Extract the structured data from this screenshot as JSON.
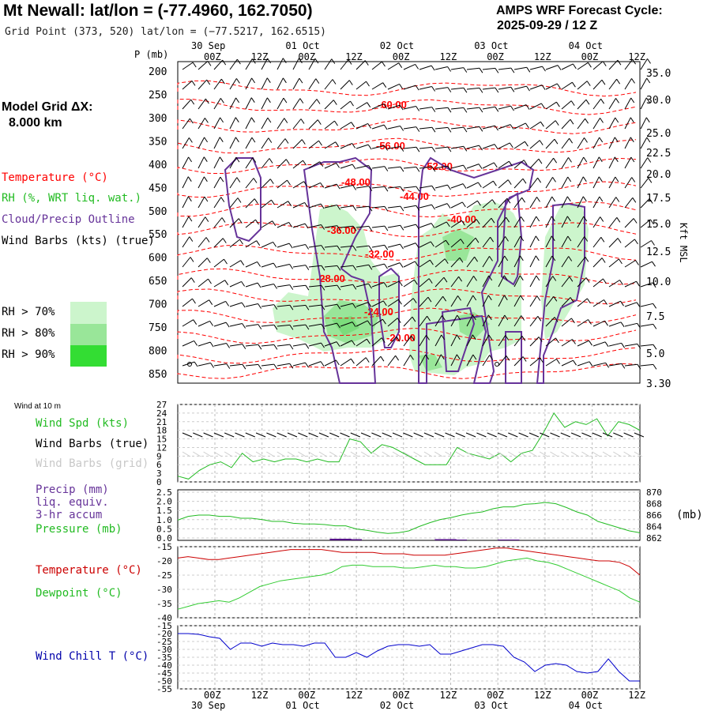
{
  "header": {
    "title": "Mt Newall:  lat/lon = (-77.4960, 162.7050)",
    "subtitle": "Grid Point (373, 520) lat/lon = (−77.5217, 162.6515)",
    "cycle_line1": "AMPS WRF Forecast Cycle:",
    "cycle_line2": "2025-09-29 / 12  Z"
  },
  "time_axis": {
    "ticks": [
      "00Z",
      "12Z",
      "00Z",
      "12Z",
      "00Z",
      "12Z",
      "00Z",
      "12Z",
      "00Z",
      "12Z"
    ],
    "dates": [
      "30 Sep",
      "01 Oct",
      "02 Oct",
      "03 Oct",
      "04 Oct"
    ]
  },
  "left_legend": {
    "grid_title": "Model Grid ΔX:",
    "grid_value": "8.000 km",
    "temperature": "Temperature (°C)",
    "rh": "RH (%, WRT liq. wat.)",
    "cloud": "Cloud/Precip Outline",
    "wind": "Wind Barbs (kts) (true)",
    "rh70": "RH > 70%",
    "rh80": "RH > 80%",
    "rh90": "RH > 90%",
    "p_label": "P (mb)",
    "kft_label": "Kft MSL",
    "wind10_label": "Wind at 10 m",
    "wind_spd": "Wind Spd (kts)",
    "barbs_true": "Wind Barbs (true)",
    "barbs_grid": "Wind Barbs (grid)",
    "precip": "Precip (mm)",
    "precip2": "liq. equiv.",
    "precip3": "3-hr accum",
    "pressure": "Pressure (mb)",
    "mb_unit": "(mb)",
    "temp2": "Temperature (°C)",
    "dewpoint": "Dewpoint (°C)",
    "windchill": "Wind Chill T (°C)"
  },
  "colors": {
    "temperature": "#ff0000",
    "rh70": "#ccf5cc",
    "rh80": "#99e699",
    "rh90": "#33dd33",
    "cloud": "#663399",
    "green_line": "#22bb22",
    "dewpoint": "#33cc33",
    "windchill": "#0000cc",
    "grid_barbs": "#cccccc",
    "precip": "#551188"
  },
  "chart_data": [
    {
      "type": "line",
      "title": "Cross-section",
      "y_axis": "P (mb)",
      "y_ticks": [
        "200",
        "250",
        "300",
        "350",
        "400",
        "450",
        "500",
        "550",
        "600",
        "650",
        "700",
        "750",
        "800",
        "850"
      ],
      "right_axis": "Kft MSL",
      "right_ticks": [
        "35.0",
        "30.0",
        "25.0",
        "22.5",
        "20.0",
        "17.5",
        "15.0",
        "12.5",
        "10.0",
        "7.5",
        "5.0",
        "3.30"
      ],
      "rh_legend_levels": [
        70,
        80,
        90
      ],
      "temperature_contour_labels": [
        "-60.00",
        "-56.00",
        "-52.00",
        "-48.00",
        "-44.00",
        "-40.00",
        "-36.00",
        "-32.00",
        "-28.00",
        "-24.00",
        "-20.00"
      ]
    },
    {
      "type": "line",
      "title": "Wind at 10 m",
      "y_ticks": [
        "27",
        "24",
        "21",
        "18",
        "15",
        "12",
        "9",
        "6",
        "3",
        "0"
      ],
      "ylim": [
        0,
        27
      ],
      "series": [
        {
          "name": "Wind Spd (kts)",
          "values": [
            2,
            1,
            4,
            6,
            7,
            5,
            10,
            7,
            8,
            7,
            8,
            8,
            7,
            8,
            7,
            7,
            15,
            14,
            10,
            13,
            12,
            10,
            8,
            6,
            6,
            6,
            12,
            10,
            9,
            8,
            10,
            7,
            10,
            11,
            17,
            24,
            19,
            21,
            20,
            22,
            16,
            21,
            20,
            18
          ]
        }
      ]
    },
    {
      "type": "line",
      "title": "Precip / Pressure",
      "y_ticks": [
        "2.5",
        "2.0",
        "1.5",
        "1.0",
        "0.5",
        "0.0"
      ],
      "right_ticks": [
        "870",
        "868",
        "866",
        "864",
        "862"
      ],
      "series": [
        {
          "name": "Pressure (mb)",
          "values": [
            865.2,
            865.8,
            866,
            866,
            865.8,
            865.8,
            865.5,
            865.5,
            865.3,
            865,
            865,
            864.7,
            864.6,
            864.6,
            864.5,
            864.3,
            864.3,
            863.8,
            863.6,
            863.3,
            863.1,
            863.2,
            863.5,
            864.2,
            864.8,
            865.3,
            865.6,
            866,
            866.3,
            866.5,
            867,
            867.3,
            867.3,
            867.7,
            867.8,
            868,
            867.8,
            867.2,
            866.5,
            866,
            865,
            864.5,
            864,
            863.5,
            863.2
          ]
        },
        {
          "name": "Precip (mm)",
          "values": [
            0,
            0,
            0,
            0,
            0,
            0,
            0,
            0,
            0,
            0,
            0,
            0,
            0,
            0,
            0,
            0.08,
            0.08,
            0.06,
            0,
            0,
            0,
            0,
            0,
            0,
            0,
            0.06,
            0.06,
            0.04,
            0,
            0,
            0,
            0.04,
            0.04,
            0,
            0,
            0,
            0,
            0,
            0,
            0,
            0,
            0,
            0,
            0,
            0
          ]
        }
      ]
    },
    {
      "type": "line",
      "title": "Temperature / Dewpoint",
      "y_ticks": [
        "-15",
        "-20",
        "-25",
        "-30",
        "-35",
        "-40"
      ],
      "ylim": [
        -40,
        -15
      ],
      "series": [
        {
          "name": "Temperature (°C)",
          "values": [
            -19,
            -18.5,
            -19,
            -19.5,
            -19.5,
            -19,
            -18.5,
            -18,
            -17.5,
            -17,
            -16.5,
            -16,
            -16,
            -16,
            -16,
            -16.5,
            -17,
            -17,
            -17,
            -17,
            -17.5,
            -17.5,
            -17.5,
            -18,
            -18,
            -18,
            -18,
            -17.5,
            -17,
            -16.5,
            -16,
            -15.5,
            -15.5,
            -16,
            -16.5,
            -17,
            -17.5,
            -18,
            -18.5,
            -19,
            -19.5,
            -20,
            -20,
            -20.5,
            -22,
            -25
          ]
        },
        {
          "name": "Dewpoint (°C)",
          "values": [
            -37,
            -36,
            -35,
            -34.5,
            -34,
            -34.5,
            -33,
            -31,
            -29,
            -28,
            -27,
            -26.5,
            -26,
            -25.5,
            -25,
            -24,
            -22,
            -21.5,
            -21.5,
            -22,
            -22,
            -22,
            -22.5,
            -22.5,
            -22,
            -21.5,
            -22,
            -22,
            -22.5,
            -22.5,
            -22,
            -21,
            -20,
            -19.5,
            -19,
            -20,
            -20.5,
            -21.5,
            -23,
            -24.5,
            -26,
            -27.5,
            -29,
            -30.5,
            -33,
            -34.5
          ]
        }
      ]
    },
    {
      "type": "line",
      "title": "Wind Chill",
      "y_ticks": [
        "-15",
        "-20",
        "-25",
        "-30",
        "-35",
        "-40",
        "-45",
        "-50",
        "-55"
      ],
      "ylim": [
        -55,
        -15
      ],
      "series": [
        {
          "name": "Wind Chill T (°C)",
          "values": [
            -20,
            -20,
            -20.5,
            -22,
            -23,
            -30,
            -26,
            -26,
            -28,
            -26,
            -27,
            -27,
            -28,
            -26,
            -26,
            -35,
            -35,
            -32,
            -35,
            -31,
            -28,
            -27,
            -27,
            -28,
            -27,
            -33,
            -33,
            -31,
            -29,
            -27,
            -27,
            -28,
            -35,
            -38,
            -44,
            -40,
            -39,
            -40,
            -44,
            -45,
            -44,
            -36,
            -44,
            -50,
            -50
          ]
        }
      ]
    }
  ]
}
